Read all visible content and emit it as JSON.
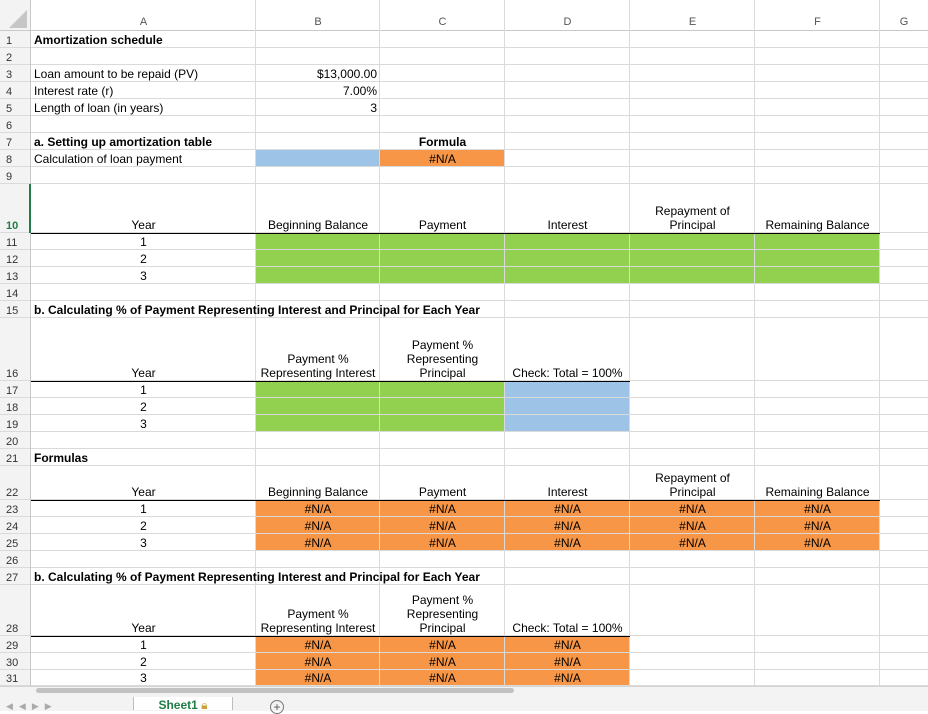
{
  "sheet": {
    "columns": [
      "A",
      "B",
      "C",
      "D",
      "E",
      "F",
      "G"
    ],
    "rows": [
      "1",
      "2",
      "3",
      "4",
      "5",
      "6",
      "7",
      "8",
      "9",
      "10",
      "11",
      "12",
      "13",
      "14",
      "15",
      "16",
      "17",
      "18",
      "19",
      "20",
      "21",
      "22",
      "23",
      "24",
      "25",
      "26",
      "27",
      "28",
      "29",
      "30",
      "31"
    ],
    "active_row": "10",
    "colors": {
      "green": "#92d050",
      "blue": "#9dc3e6",
      "orange": "#f79646"
    }
  },
  "title": "Amortization schedule",
  "inputs": {
    "pv_label": "Loan amount to be repaid (PV)",
    "pv_value": "$13,000.00",
    "rate_label": "Interest rate  (r)",
    "rate_value": "7.00%",
    "years_label": "Length of loan (in years)",
    "years_value": "3"
  },
  "section_a": {
    "heading": "a. Setting up amortization table",
    "formula_header": "Formula",
    "payment_label": "Calculation of loan payment",
    "payment_formula": "#N/A"
  },
  "table1": {
    "headers": [
      "Year",
      "Beginning Balance",
      "Payment",
      "Interest",
      "Repayment of Principal",
      "Remaining Balance"
    ],
    "header_lines": {
      "repayment_1": "Repayment of",
      "repayment_2": "Principal"
    },
    "years": [
      "1",
      "2",
      "3"
    ]
  },
  "section_b": {
    "heading": "b. Calculating % of Payment Representing Interest and Principal for Each Year",
    "year": "Year",
    "pct_interest_1": "Payment %",
    "pct_interest_2": "Representing Interest",
    "pct_principal_1": "Payment %",
    "pct_principal_2": "Representing",
    "pct_principal_3": "Principal",
    "check": "Check:  Total = 100%",
    "years": [
      "1",
      "2",
      "3"
    ]
  },
  "formulas_heading": "Formulas",
  "table2": {
    "headers": [
      "Year",
      "Beginning Balance",
      "Payment",
      "Interest",
      "Remaining Balance"
    ],
    "repayment_1": "Repayment of",
    "repayment_2": "Principal",
    "years": [
      "1",
      "2",
      "3"
    ],
    "na": "#N/A"
  },
  "section_b2": {
    "heading": "b. Calculating % of Payment Representing Interest and Principal for Each Year",
    "year": "Year",
    "pct_interest_1": "Payment %",
    "pct_interest_2": "Representing Interest",
    "pct_principal_1": "Payment %",
    "pct_principal_2": "Representing",
    "pct_principal_3": "Principal",
    "check": "Check:  Total = 100%",
    "years": [
      "1",
      "2",
      "3"
    ],
    "na": "#N/A"
  },
  "tabs": {
    "sheet1": "Sheet1",
    "add": "+"
  }
}
